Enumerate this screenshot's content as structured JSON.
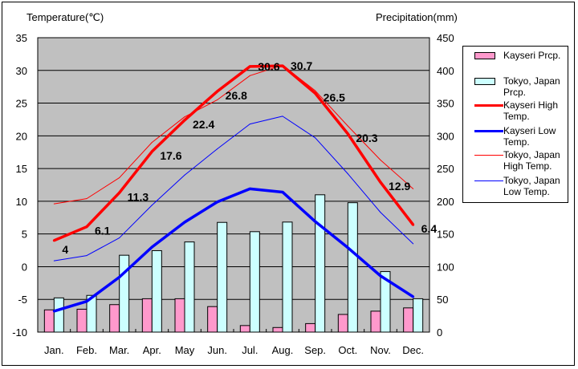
{
  "chart_data": {
    "type": "bar+line",
    "left_axis_title": "Temperature(℃)",
    "right_axis_title": "Precipitation(mm)",
    "categories": [
      "Jan.",
      "Feb.",
      "Mar.",
      "Apr.",
      "May",
      "Jun.",
      "Jul.",
      "Aug.",
      "Sep.",
      "Oct.",
      "Nov.",
      "Dec."
    ],
    "left_ylim": [
      -10,
      35
    ],
    "left_ticks": [
      "35",
      "30",
      "25",
      "20",
      "15",
      "10",
      "5",
      "0",
      "-5",
      "-10"
    ],
    "right_ylim": [
      0,
      450
    ],
    "right_ticks": [
      "450",
      "400",
      "350",
      "300",
      "250",
      "200",
      "150",
      "100",
      "50",
      "0"
    ],
    "grid": true,
    "legend_position": "right",
    "bar_series": [
      {
        "name": "Kayseri Prcp.",
        "color": "#FF99CC",
        "values": [
          34,
          35,
          42,
          51,
          51,
          39,
          10,
          7,
          13,
          27,
          32,
          37
        ]
      },
      {
        "name": "Tokyo, Japan Prcp.",
        "color": "#CCFFFF",
        "values": [
          52.3,
          56.1,
          117.5,
          124.5,
          137.8,
          167.7,
          153.5,
          168.2,
          209.9,
          197.8,
          92.5,
          51.0
        ]
      }
    ],
    "line_series": [
      {
        "name": "Kayseri High Temp.",
        "color": "#FF0000",
        "width": "thick",
        "values": [
          4,
          6.1,
          11.3,
          17.6,
          22.4,
          26.8,
          30.6,
          30.7,
          26.5,
          20.3,
          12.9,
          6.4
        ],
        "labels": [
          "4",
          "6.1",
          "11.3",
          "17.6",
          "22.4",
          "26.8",
          "30.6",
          "30.7",
          "26.5",
          "20.3",
          "12.9",
          "6.4"
        ]
      },
      {
        "name": "Kayseri Low Temp.",
        "color": "#0000FF",
        "width": "thick",
        "values": [
          -6.8,
          -5.3,
          -1.6,
          3.0,
          6.8,
          9.9,
          11.9,
          11.4,
          6.9,
          2.9,
          -1.4,
          -4.6
        ]
      },
      {
        "name": "Tokyo, Japan High Temp.",
        "color": "#FF0000",
        "width": "thin",
        "values": [
          9.6,
          10.4,
          13.6,
          19.0,
          22.9,
          25.5,
          29.2,
          30.8,
          26.9,
          21.5,
          16.3,
          11.9
        ]
      },
      {
        "name": "Tokyo, Japan Low Temp.",
        "color": "#0000FF",
        "width": "thin",
        "values": [
          0.9,
          1.7,
          4.4,
          9.4,
          14.0,
          18.0,
          21.8,
          23.0,
          19.7,
          14.2,
          8.3,
          3.5
        ]
      }
    ],
    "legend": [
      {
        "lines": [
          "Kayseri Prcp."
        ],
        "type": "bar",
        "color": "#FF99CC"
      },
      {
        "lines": [
          "Tokyo, Japan",
          "Prcp."
        ],
        "type": "bar",
        "color": "#CCFFFF"
      },
      {
        "lines": [
          "Kayseri High",
          "Temp."
        ],
        "type": "thick",
        "color": "#FF0000"
      },
      {
        "lines": [
          "Kayseri Low",
          "Temp."
        ],
        "type": "thick",
        "color": "#0000FF"
      },
      {
        "lines": [
          "Tokyo, Japan",
          "High Temp."
        ],
        "type": "thin",
        "color": "#FF0000"
      },
      {
        "lines": [
          "Tokyo, Japan",
          "Low Temp."
        ],
        "type": "thin",
        "color": "#0000FF"
      }
    ],
    "plot_background": "#C0C0C0"
  }
}
